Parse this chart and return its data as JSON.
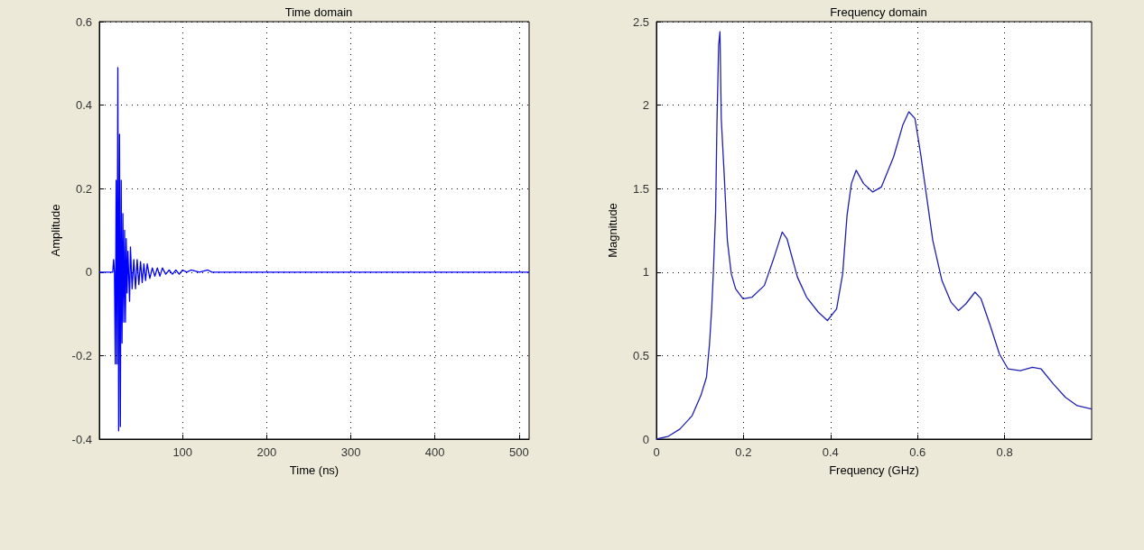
{
  "chart_data": [
    {
      "type": "line",
      "title": "Time domain",
      "xlabel": "Time (ns)",
      "ylabel": "Amplitude",
      "xlim": [
        1,
        512
      ],
      "xticks": [
        100,
        200,
        300,
        400,
        500
      ],
      "ylim": [
        -0.4,
        0.6
      ],
      "yticks": [
        -0.4,
        -0.2,
        0,
        0.2,
        0.4,
        0.6
      ],
      "grid": true,
      "marker": "none",
      "line_style": "solid",
      "series": [
        {
          "color": "#0000ff",
          "x": [
            1,
            17,
            18,
            19,
            20,
            21,
            22,
            23,
            24,
            25,
            26,
            27,
            28,
            29,
            30,
            31,
            32,
            33,
            34,
            35,
            37,
            38,
            40,
            42,
            44,
            46,
            48,
            50,
            52,
            54,
            56,
            58,
            61,
            64,
            67,
            70,
            73,
            76,
            80,
            84,
            88,
            92,
            96,
            100,
            105,
            110,
            120,
            130,
            135,
            512
          ],
          "values": [
            0,
            0,
            0.03,
            0,
            -0.22,
            0.22,
            -0.22,
            0.49,
            -0.38,
            0.33,
            -0.37,
            0.22,
            -0.17,
            0.14,
            -0.12,
            0.1,
            -0.12,
            0.08,
            -0.05,
            0.05,
            -0.07,
            0.06,
            -0.04,
            0.03,
            -0.04,
            0.03,
            -0.03,
            0.025,
            -0.025,
            0.02,
            -0.02,
            0.02,
            -0.015,
            0.01,
            -0.01,
            0.01,
            -0.01,
            0.01,
            -0.005,
            0.005,
            -0.005,
            0.005,
            -0.005,
            0.005,
            0,
            0.005,
            0,
            0.005,
            0,
            0
          ]
        }
      ]
    },
    {
      "type": "line",
      "title": "Frequency domain",
      "xlabel": "Frequency (GHz)",
      "ylabel": "Magnitude",
      "xlim": [
        0,
        1
      ],
      "xticks": [
        0,
        0.2,
        0.4,
        0.6,
        0.8
      ],
      "ylim": [
        0,
        2.5
      ],
      "yticks": [
        0,
        0.5,
        1,
        1.5,
        2,
        2.5
      ],
      "grid": true,
      "marker": "none",
      "line_style": "solid",
      "series": [
        {
          "color": "#2020b0",
          "x": [
            0,
            0.026,
            0.054,
            0.082,
            0.102,
            0.115,
            0.122,
            0.127,
            0.131,
            0.136,
            0.139,
            0.143,
            0.146,
            0.149,
            0.156,
            0.163,
            0.172,
            0.182,
            0.199,
            0.22,
            0.248,
            0.268,
            0.289,
            0.3,
            0.324,
            0.345,
            0.372,
            0.393,
            0.414,
            0.428,
            0.438,
            0.448,
            0.459,
            0.476,
            0.497,
            0.517,
            0.545,
            0.566,
            0.58,
            0.594,
            0.607,
            0.635,
            0.656,
            0.677,
            0.694,
            0.711,
            0.732,
            0.746,
            0.767,
            0.788,
            0.808,
            0.836,
            0.864,
            0.884,
            0.912,
            0.94,
            0.967,
            1.0
          ],
          "values": [
            0,
            0.015,
            0.06,
            0.14,
            0.26,
            0.37,
            0.57,
            0.78,
            1.01,
            1.36,
            1.88,
            2.36,
            2.44,
            1.92,
            1.57,
            1.19,
            0.99,
            0.9,
            0.84,
            0.85,
            0.92,
            1.07,
            1.24,
            1.2,
            0.97,
            0.85,
            0.76,
            0.71,
            0.78,
            0.99,
            1.34,
            1.53,
            1.61,
            1.53,
            1.48,
            1.51,
            1.69,
            1.88,
            1.96,
            1.92,
            1.71,
            1.19,
            0.95,
            0.82,
            0.77,
            0.81,
            0.88,
            0.84,
            0.68,
            0.51,
            0.42,
            0.41,
            0.43,
            0.42,
            0.33,
            0.25,
            0.2,
            0.18
          ]
        }
      ]
    }
  ]
}
